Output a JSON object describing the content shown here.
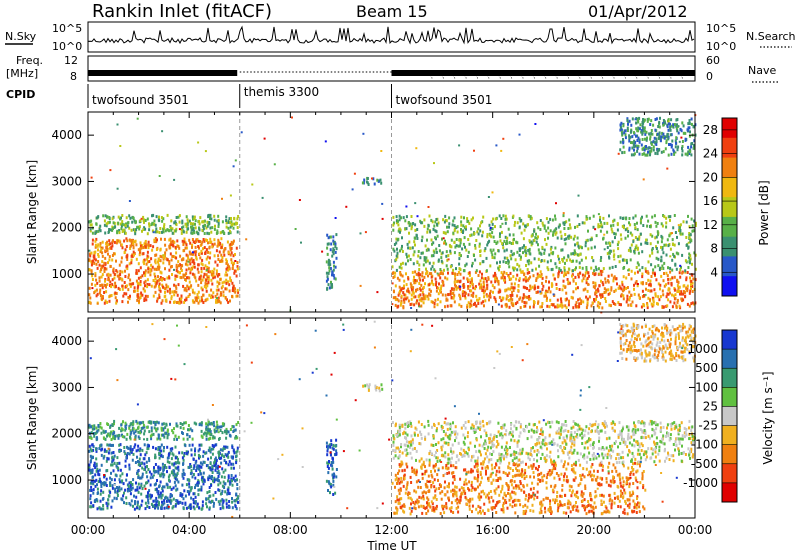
{
  "header": {
    "title": "Rankin Inlet (fitACF)",
    "beam": "Beam 15",
    "date": "01/Apr/2012"
  },
  "strip_labels": {
    "nsky": "N.Sky",
    "nsearch": "N.Search",
    "freq_line1": "Freq.",
    "freq_line2": "[MHz]",
    "nave": "Nave",
    "cpid": "CPID",
    "noise_ticks": [
      "10^5",
      "10^0"
    ],
    "freq_ticks": [
      "12",
      "8"
    ],
    "nave_ticks": [
      "60",
      "0"
    ]
  },
  "cpid_segments": [
    {
      "label": "twofsound 3501",
      "start_hour": 0,
      "end_hour": 6
    },
    {
      "label": "themis 3300",
      "start_hour": 6,
      "end_hour": 12
    },
    {
      "label": "twofsound 3501",
      "start_hour": 12,
      "end_hour": 24
    }
  ],
  "chart_data": [
    {
      "type": "heatmap",
      "title": "",
      "xlabel": "Time UT",
      "ylabel": "Slant Range [km]",
      "xlim": [
        0,
        24
      ],
      "ylim": [
        180,
        4500
      ],
      "x_ticks": [
        "00:00",
        "04:00",
        "08:00",
        "12:00",
        "16:00",
        "20:00",
        "00:00"
      ],
      "y_ticks": [
        1000,
        2000,
        3000,
        4000
      ],
      "colorbar": {
        "label": "Power [dB]",
        "ticks": [
          4,
          8,
          12,
          16,
          20,
          24,
          28
        ],
        "range": [
          0,
          30
        ],
        "colors": [
          "#1010f0",
          "#2858c8",
          "#3a9070",
          "#58b048",
          "#b8c818",
          "#f0b810",
          "#f08010",
          "#f04010",
          "#e00000"
        ]
      },
      "regions": [
        {
          "t0": 0.0,
          "t1": 5.9,
          "r0": 400,
          "r1": 1800,
          "power": 22
        },
        {
          "t0": 0.0,
          "t1": 5.9,
          "r0": 1900,
          "r1": 2300,
          "power": 10
        },
        {
          "t0": 9.4,
          "t1": 9.8,
          "r0": 700,
          "r1": 1900,
          "power": 9
        },
        {
          "t0": 10.8,
          "t1": 11.6,
          "r0": 2950,
          "r1": 3100,
          "power": 7
        },
        {
          "t0": 12.0,
          "t1": 24.0,
          "r0": 300,
          "r1": 1100,
          "power": 24
        },
        {
          "t0": 12.0,
          "t1": 24.0,
          "r0": 1100,
          "r1": 2300,
          "power": 12
        },
        {
          "t0": 21.0,
          "t1": 24.0,
          "r0": 3600,
          "r1": 4400,
          "power": 8
        }
      ]
    },
    {
      "type": "heatmap",
      "title": "",
      "xlabel": "Time UT",
      "ylabel": "Slant Range [km]",
      "xlim": [
        0,
        24
      ],
      "ylim": [
        180,
        4500
      ],
      "x_ticks": [
        "00:00",
        "04:00",
        "08:00",
        "12:00",
        "16:00",
        "20:00",
        "00:00"
      ],
      "y_ticks": [
        1000,
        2000,
        3000,
        4000
      ],
      "colorbar": {
        "label": "Velocity [m s⁻¹]",
        "ticks": [
          "1000",
          "500",
          "100",
          "25",
          "-25",
          "-100",
          "-500",
          "-1000"
        ],
        "colors": [
          "#1838d0",
          "#2870b0",
          "#389a70",
          "#60c040",
          "#c8c8c8",
          "#f0b020",
          "#f08010",
          "#f04010",
          "#e00000"
        ]
      },
      "regions": [
        {
          "t0": 0.0,
          "t1": 5.9,
          "r0": 400,
          "r1": 1800,
          "velocity": 400
        },
        {
          "t0": 0.0,
          "t1": 5.9,
          "r0": 1900,
          "r1": 2300,
          "velocity": 60
        },
        {
          "t0": 9.4,
          "t1": 9.8,
          "r0": 700,
          "r1": 1900,
          "velocity": 500
        },
        {
          "t0": 10.8,
          "t1": 11.6,
          "r0": 2950,
          "r1": 3100,
          "velocity": 0
        },
        {
          "t0": 12.0,
          "t1": 22.0,
          "r0": 300,
          "r1": 1400,
          "velocity": -300
        },
        {
          "t0": 12.0,
          "t1": 24.0,
          "r0": 1400,
          "r1": 2300,
          "velocity": 0
        },
        {
          "t0": 21.0,
          "t1": 24.0,
          "r0": 3600,
          "r1": 4400,
          "velocity": -80
        }
      ]
    }
  ]
}
